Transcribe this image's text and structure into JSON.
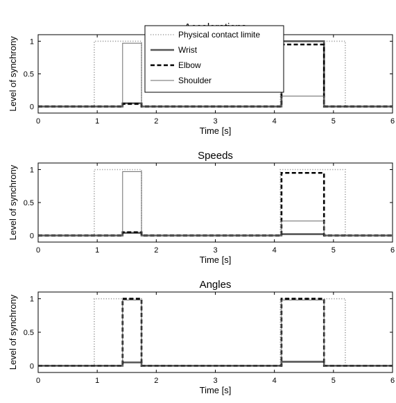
{
  "chart_data": [
    {
      "type": "line",
      "title": "Accelerations",
      "xlabel": "Time [s]",
      "ylabel": "Level of synchrony",
      "xlim": [
        0,
        6
      ],
      "ylim": [
        -0.1,
        1.1
      ],
      "xticks": [
        0,
        1,
        2,
        3,
        4,
        5,
        6
      ],
      "yticks": [
        0,
        0.5,
        1
      ],
      "ytick_labels": [
        "0",
        "0.5",
        "1"
      ],
      "grid": false,
      "legend": {
        "placement": "top-center",
        "entries": [
          "Physical contact limite",
          "Wrist",
          "Elbow",
          "Shoulder"
        ]
      },
      "series": [
        {
          "name": "Physical contact limite",
          "style": "dotted",
          "color": "#9a9a9a",
          "x": [
            0,
            0.95,
            0.95,
            1.75,
            1.75,
            4.1,
            4.1,
            5.2,
            5.2,
            6
          ],
          "y": [
            0,
            0,
            1,
            1,
            0,
            0,
            1,
            1,
            0,
            0
          ]
        },
        {
          "name": "Wrist",
          "style": "solid-thick",
          "color": "#555555",
          "x": [
            0,
            1.43,
            1.43,
            1.75,
            1.75,
            4.12,
            4.12,
            4.84,
            4.84,
            6
          ],
          "y": [
            0,
            0,
            0.05,
            0.05,
            0,
            0,
            1,
            1,
            0,
            0
          ]
        },
        {
          "name": "Elbow",
          "style": "dashed",
          "color": "#000000",
          "x": [
            0,
            1.43,
            1.43,
            1.75,
            1.75,
            4.12,
            4.12,
            4.84,
            4.84,
            6
          ],
          "y": [
            0,
            0,
            0.04,
            0.04,
            0,
            0,
            0.95,
            0.95,
            0,
            0
          ]
        },
        {
          "name": "Shoulder",
          "style": "solid-thin",
          "color": "#6a6a6a",
          "x": [
            0,
            1.43,
            1.43,
            1.75,
            1.75,
            4.12,
            4.12,
            4.84,
            4.84,
            6
          ],
          "y": [
            0,
            0,
            0.97,
            0.97,
            0,
            0,
            0.16,
            0.16,
            0,
            0
          ]
        }
      ]
    },
    {
      "type": "line",
      "title": "Speeds",
      "xlabel": "Time [s]",
      "ylabel": "Level of synchrony",
      "xlim": [
        0,
        6
      ],
      "ylim": [
        -0.1,
        1.1
      ],
      "xticks": [
        0,
        1,
        2,
        3,
        4,
        5,
        6
      ],
      "yticks": [
        0,
        0.5,
        1
      ],
      "ytick_labels": [
        "0",
        "0.5",
        "1"
      ],
      "grid": false,
      "series": [
        {
          "name": "Physical contact limite",
          "style": "dotted",
          "color": "#9a9a9a",
          "x": [
            0,
            0.95,
            0.95,
            1.75,
            1.75,
            4.1,
            4.1,
            5.2,
            5.2,
            6
          ],
          "y": [
            0,
            0,
            1,
            1,
            0,
            0,
            1,
            1,
            0,
            0
          ]
        },
        {
          "name": "Wrist",
          "style": "solid-thick",
          "color": "#555555",
          "x": [
            0,
            1.43,
            1.43,
            1.75,
            1.75,
            4.12,
            4.12,
            4.84,
            4.84,
            6
          ],
          "y": [
            0,
            0,
            0.04,
            0.04,
            0,
            0,
            0.02,
            0.02,
            0,
            0
          ]
        },
        {
          "name": "Elbow",
          "style": "dashed",
          "color": "#000000",
          "x": [
            0,
            1.43,
            1.43,
            1.75,
            1.75,
            4.12,
            4.12,
            4.84,
            4.84,
            6
          ],
          "y": [
            0,
            0,
            0.05,
            0.05,
            0,
            0,
            0.95,
            0.95,
            0,
            0
          ]
        },
        {
          "name": "Shoulder",
          "style": "solid-thin",
          "color": "#6a6a6a",
          "x": [
            0,
            1.43,
            1.43,
            1.75,
            1.75,
            4.12,
            4.12,
            4.84,
            4.84,
            6
          ],
          "y": [
            0,
            0,
            0.97,
            0.97,
            0,
            0,
            0.22,
            0.22,
            0,
            0
          ]
        }
      ]
    },
    {
      "type": "line",
      "title": "Angles",
      "xlabel": "Time [s]",
      "ylabel": "Level of synchrony",
      "xlim": [
        0,
        6
      ],
      "ylim": [
        -0.1,
        1.1
      ],
      "xticks": [
        0,
        1,
        2,
        3,
        4,
        5,
        6
      ],
      "yticks": [
        0,
        0.5,
        1
      ],
      "ytick_labels": [
        "0",
        "0.5",
        "1"
      ],
      "grid": false,
      "series": [
        {
          "name": "Physical contact limite",
          "style": "dotted",
          "color": "#9a9a9a",
          "x": [
            0,
            0.95,
            0.95,
            1.75,
            1.75,
            4.1,
            4.1,
            5.2,
            5.2,
            6
          ],
          "y": [
            0,
            0,
            1,
            1,
            0,
            0,
            1,
            1,
            0,
            0
          ]
        },
        {
          "name": "Wrist",
          "style": "solid-thick",
          "color": "#555555",
          "x": [
            0,
            1.43,
            1.43,
            1.75,
            1.75,
            4.12,
            4.12,
            4.84,
            4.84,
            6
          ],
          "y": [
            0,
            0,
            0.05,
            0.05,
            0,
            0,
            0.06,
            0.06,
            0,
            0
          ]
        },
        {
          "name": "Elbow",
          "style": "dashed",
          "color": "#000000",
          "x": [
            0,
            1.43,
            1.43,
            1.75,
            1.75,
            4.12,
            4.12,
            4.84,
            4.84,
            6
          ],
          "y": [
            0,
            0,
            1,
            1,
            0,
            0,
            1,
            1,
            0,
            0
          ]
        },
        {
          "name": "Shoulder",
          "style": "solid-thin",
          "color": "#6a6a6a",
          "x": [
            0,
            1.43,
            1.43,
            1.75,
            1.75,
            4.12,
            4.12,
            4.84,
            4.84,
            6
          ],
          "y": [
            0,
            0,
            0.98,
            0.98,
            0,
            0,
            0.98,
            0.98,
            0,
            0
          ]
        }
      ]
    }
  ]
}
